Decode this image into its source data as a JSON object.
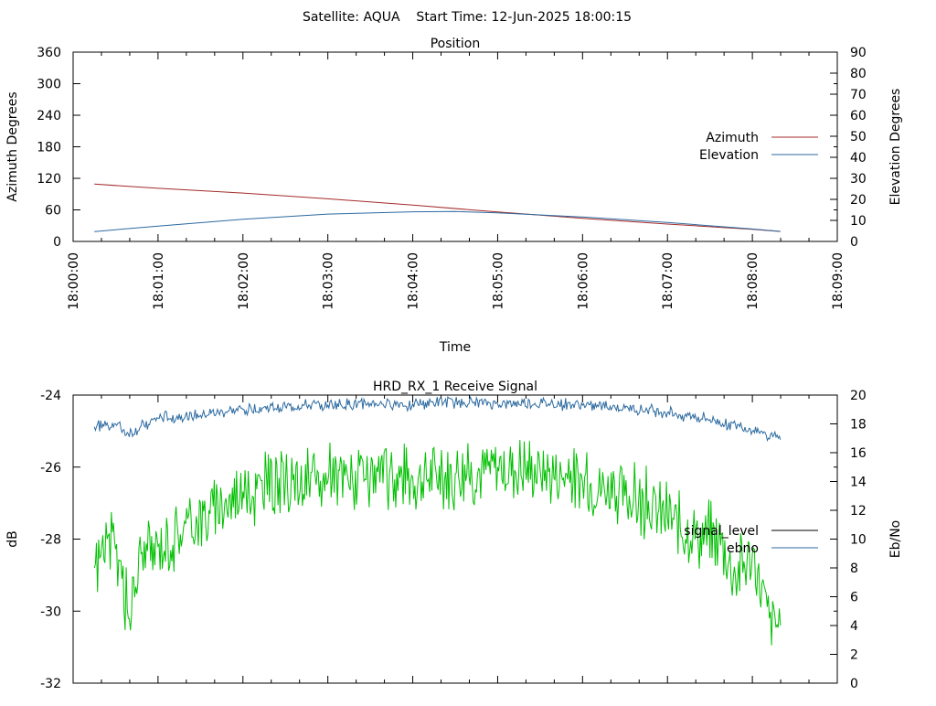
{
  "page_title": "Satellite: AQUA    Start Time: 12-Jun-2025 18:00:15",
  "chart_data": [
    {
      "type": "line",
      "title": "Position",
      "xlabel": "Time",
      "ylabel": "Azimuth Degrees",
      "y2label": "Elevation Degrees",
      "x_ticks": [
        "18:00:00",
        "18:01:00",
        "18:02:00",
        "18:03:00",
        "18:04:00",
        "18:05:00",
        "18:06:00",
        "18:07:00",
        "18:08:00",
        "18:09:00"
      ],
      "xlim_minutes": [
        0,
        9
      ],
      "ylim": [
        0,
        360
      ],
      "y_ticks": [
        0,
        60,
        120,
        180,
        240,
        300,
        360
      ],
      "y2lim": [
        0,
        90
      ],
      "y2_ticks": [
        0,
        10,
        20,
        30,
        40,
        50,
        60,
        70,
        80,
        90
      ],
      "legend_position": "right",
      "series": [
        {
          "name": "Azimuth",
          "axis": "y",
          "color": "#a52a2a",
          "x_minutes": [
            0.25,
            1,
            2,
            3,
            4,
            5,
            6,
            7,
            8,
            8.33
          ],
          "values": [
            109,
            101,
            92,
            81,
            69,
            56,
            44,
            33,
            23,
            19
          ]
        },
        {
          "name": "Elevation",
          "axis": "y2",
          "color": "#2c6aa0",
          "x_minutes": [
            0.25,
            1,
            2,
            3,
            4,
            4.5,
            5,
            6,
            7,
            8,
            8.33
          ],
          "values": [
            4.7,
            7.3,
            10.5,
            13,
            14.1,
            14.2,
            13.6,
            11.6,
            9.0,
            5.9,
            4.8
          ]
        }
      ]
    },
    {
      "type": "line",
      "title": "HRD_RX_1 Receive Signal",
      "xlabel": "",
      "ylabel": "dB",
      "y2label": "Eb/No",
      "ylim": [
        -32,
        -24
      ],
      "y_ticks": [
        -32,
        -30,
        -28,
        -26,
        -24
      ],
      "y2lim": [
        0,
        20
      ],
      "y2_ticks": [
        0,
        2,
        4,
        6,
        8,
        10,
        12,
        14,
        16,
        18,
        20
      ],
      "xlim_minutes": [
        0,
        9
      ],
      "legend_position": "right",
      "series": [
        {
          "name": "signal_level",
          "axis": "y",
          "color": "#000000",
          "x_minutes": [],
          "values": []
        },
        {
          "name": "ebno",
          "axis": "y2",
          "color": "#2c6aa0",
          "x_minutes": [
            0.25,
            0.5,
            0.65,
            1,
            1.5,
            2,
            2.5,
            3,
            3.5,
            4,
            4.5,
            5,
            5.5,
            6,
            6.5,
            7,
            7.5,
            7.85,
            8.1,
            8.33
          ],
          "values": [
            17.8,
            18.0,
            17.3,
            18.4,
            18.6,
            19.0,
            19.2,
            19.3,
            19.4,
            19.4,
            19.5,
            19.4,
            19.4,
            19.3,
            19.1,
            18.8,
            18.3,
            17.8,
            17.5,
            16.9
          ]
        },
        {
          "name": "",
          "axis": "y2",
          "color": "#00c000",
          "x_minutes": [
            0.25,
            0.4,
            0.55,
            0.65,
            0.8,
            1,
            1.3,
            1.6,
            2,
            2.5,
            3,
            3.5,
            4,
            4.5,
            5,
            5.5,
            6,
            6.5,
            7,
            7.3,
            7.6,
            7.8,
            8.0,
            8.2,
            8.33
          ],
          "values": [
            8.0,
            10.0,
            8.5,
            4.5,
            9.0,
            9.5,
            10.8,
            12.0,
            13.3,
            13.8,
            14.0,
            14.4,
            14.3,
            14.5,
            15.0,
            14.8,
            14.0,
            13.0,
            11.5,
            10.3,
            10.0,
            7.5,
            9.0,
            4.5,
            4.0
          ]
        }
      ]
    }
  ]
}
